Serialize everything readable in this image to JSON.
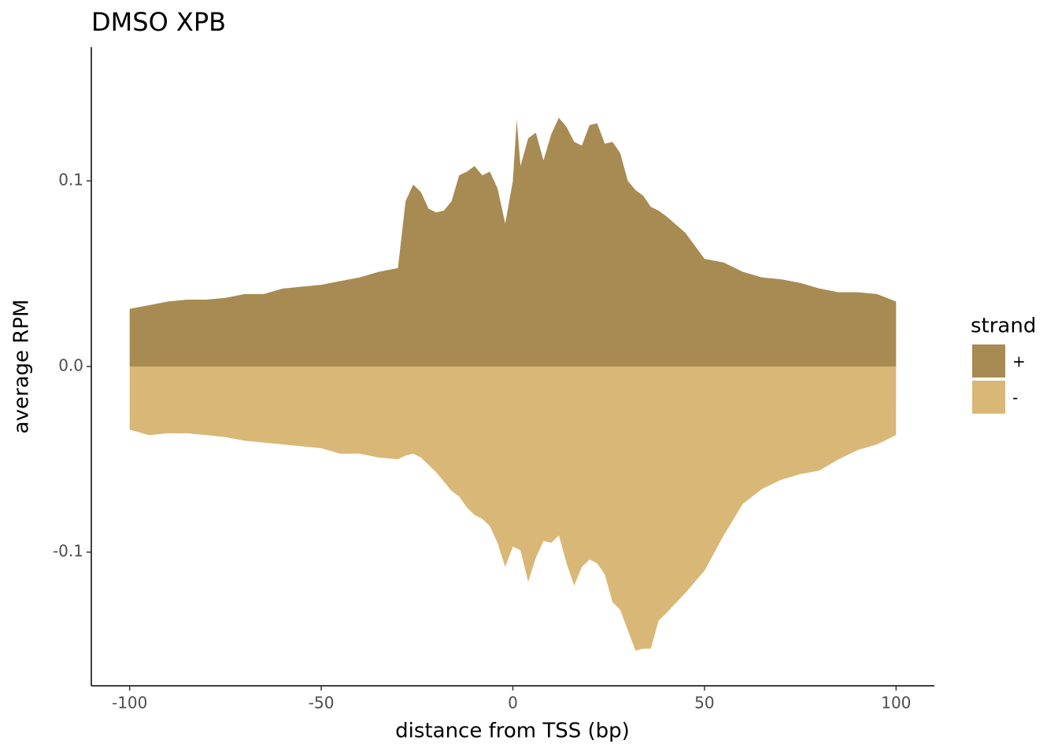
{
  "chart_data": {
    "type": "area",
    "title": "DMSO XPB",
    "xlabel": "distance from TSS (bp)",
    "ylabel": "average RPM",
    "x": [
      -100,
      -95,
      -90,
      -85,
      -80,
      -75,
      -70,
      -65,
      -60,
      -55,
      -50,
      -45,
      -40,
      -35,
      -30,
      -28,
      -26,
      -24,
      -22,
      -20,
      -18,
      -16,
      -14,
      -12,
      -10,
      -8,
      -6,
      -4,
      -2,
      0,
      1,
      2,
      4,
      6,
      8,
      10,
      12,
      14,
      16,
      18,
      20,
      22,
      24,
      26,
      28,
      30,
      32,
      34,
      36,
      38,
      40,
      45,
      50,
      55,
      60,
      65,
      70,
      75,
      80,
      85,
      90,
      95,
      100
    ],
    "series": [
      {
        "name": "+",
        "color": "#a88b52",
        "values": [
          0.031,
          0.033,
          0.035,
          0.036,
          0.036,
          0.037,
          0.039,
          0.039,
          0.042,
          0.043,
          0.044,
          0.046,
          0.048,
          0.051,
          0.053,
          0.089,
          0.098,
          0.094,
          0.085,
          0.083,
          0.084,
          0.089,
          0.103,
          0.105,
          0.108,
          0.103,
          0.105,
          0.096,
          0.077,
          0.1,
          0.133,
          0.108,
          0.123,
          0.126,
          0.111,
          0.125,
          0.134,
          0.129,
          0.121,
          0.119,
          0.13,
          0.131,
          0.12,
          0.121,
          0.115,
          0.1,
          0.095,
          0.092,
          0.086,
          0.084,
          0.081,
          0.072,
          0.058,
          0.056,
          0.051,
          0.048,
          0.047,
          0.045,
          0.042,
          0.04,
          0.04,
          0.039,
          0.035
        ]
      },
      {
        "name": "-",
        "color": "#d9b777",
        "values": [
          -0.034,
          -0.037,
          -0.036,
          -0.036,
          -0.037,
          -0.038,
          -0.04,
          -0.041,
          -0.042,
          -0.043,
          -0.044,
          -0.047,
          -0.047,
          -0.049,
          -0.05,
          -0.048,
          -0.047,
          -0.049,
          -0.053,
          -0.057,
          -0.062,
          -0.067,
          -0.07,
          -0.076,
          -0.08,
          -0.082,
          -0.086,
          -0.095,
          -0.108,
          -0.097,
          -0.098,
          -0.099,
          -0.116,
          -0.103,
          -0.094,
          -0.095,
          -0.091,
          -0.106,
          -0.118,
          -0.108,
          -0.104,
          -0.106,
          -0.112,
          -0.127,
          -0.131,
          -0.142,
          -0.153,
          -0.152,
          -0.152,
          -0.137,
          -0.133,
          -0.122,
          -0.11,
          -0.091,
          -0.074,
          -0.066,
          -0.061,
          -0.058,
          -0.056,
          -0.05,
          -0.045,
          -0.042,
          -0.037
        ]
      }
    ],
    "xlim": [
      -110,
      110
    ],
    "xticks": [
      -100,
      -50,
      0,
      50,
      100
    ],
    "ylim": [
      -0.172,
      0.172
    ],
    "yticks": [
      -0.1,
      {
        "value": 0,
        "label": "0.0"
      },
      0.1
    ],
    "legend_title": "strand",
    "legend": "right"
  }
}
